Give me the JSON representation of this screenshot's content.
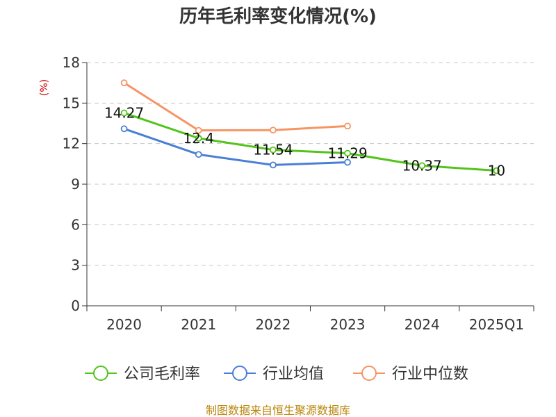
{
  "chart_data": {
    "type": "line",
    "title": "历年毛利率变化情况(%)",
    "ylabel": "(%)",
    "xlabel": "",
    "ylim": [
      0,
      18
    ],
    "yticks": [
      "0",
      "3",
      "6",
      "9",
      "12",
      "15",
      "18"
    ],
    "categories": [
      "2020",
      "2021",
      "2022",
      "2023",
      "2024",
      "2025Q1"
    ],
    "grid": true,
    "legend_position": "bottom",
    "series": [
      {
        "name": "公司毛利率",
        "color": "#52c41a",
        "values": [
          14.27,
          12.4,
          11.54,
          11.29,
          10.37,
          10
        ],
        "labels": [
          "14.27",
          "12.4",
          "11.54",
          "11.29",
          "10.37",
          "10"
        ]
      },
      {
        "name": "行业均值",
        "color": "#4a7fd6",
        "values": [
          13.1,
          11.2,
          10.42,
          10.62,
          null,
          null
        ]
      },
      {
        "name": "行业中位数",
        "color": "#f79464",
        "values": [
          16.5,
          12.98,
          13.0,
          13.3,
          null,
          null
        ]
      }
    ]
  },
  "source": "制图数据来自恒生聚源数据库"
}
